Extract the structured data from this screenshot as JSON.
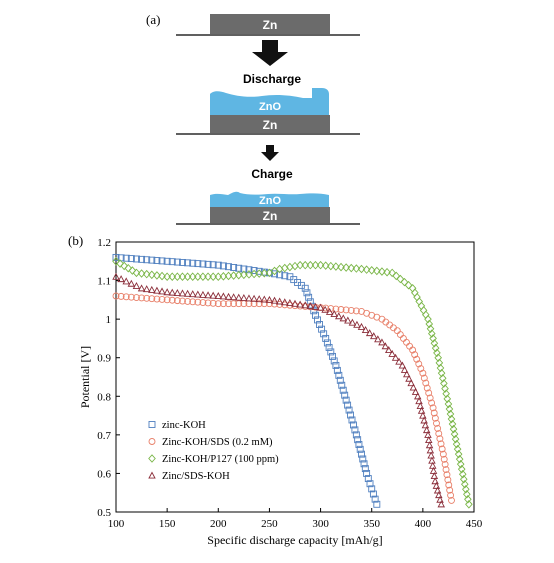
{
  "panels": {
    "a": {
      "label": "(a)"
    },
    "b": {
      "label": "(b)"
    }
  },
  "schematic": {
    "layers": {
      "zn_top": "Zn",
      "zno_middle": "ZnO",
      "zn_middle": "Zn",
      "zno_bottom": "ZnO",
      "zn_bottom": "Zn"
    },
    "steps": {
      "discharge": "Discharge",
      "charge": "Charge"
    },
    "colors": {
      "zn": "#6b6b6b",
      "zno": "#5fb6e3",
      "arrow": "#111111"
    }
  },
  "chart_data": {
    "type": "scatter",
    "xlabel": "Specific discharge capacity [mAh/g]",
    "ylabel": "Potential [V]",
    "xlim": [
      100,
      450
    ],
    "ylim": [
      0.5,
      1.2
    ],
    "xticks": [
      100,
      150,
      200,
      250,
      300,
      350,
      400,
      450
    ],
    "yticks": [
      0.5,
      0.6,
      0.7,
      0.8,
      0.9,
      1,
      1.1,
      1.2
    ],
    "ytick_labels": [
      "0.5",
      "0.6",
      "0.7",
      "0.8",
      "0.9",
      "1",
      "1.1",
      "1.2"
    ],
    "legend_position": "bottom-left",
    "grid": false,
    "series": [
      {
        "name": "zinc-KOH",
        "marker": "square",
        "color": "#4f7fbf",
        "points": [
          [
            100,
            1.16
          ],
          [
            150,
            1.15
          ],
          [
            200,
            1.14
          ],
          [
            250,
            1.12
          ],
          [
            270,
            1.11
          ],
          [
            285,
            1.08
          ],
          [
            295,
            1.01
          ],
          [
            305,
            0.95
          ],
          [
            315,
            0.88
          ],
          [
            325,
            0.79
          ],
          [
            335,
            0.7
          ],
          [
            345,
            0.6
          ],
          [
            355,
            0.52
          ]
        ]
      },
      {
        "name": "Zinc-KOH/SDS (0.2 mM)",
        "marker": "circle",
        "color": "#e8806a",
        "points": [
          [
            100,
            1.06
          ],
          [
            150,
            1.05
          ],
          [
            200,
            1.04
          ],
          [
            250,
            1.04
          ],
          [
            300,
            1.03
          ],
          [
            340,
            1.02
          ],
          [
            360,
            1.0
          ],
          [
            375,
            0.97
          ],
          [
            390,
            0.92
          ],
          [
            400,
            0.86
          ],
          [
            410,
            0.77
          ],
          [
            420,
            0.65
          ],
          [
            428,
            0.53
          ]
        ]
      },
      {
        "name": "Zinc-KOH/P127 (100 ppm)",
        "marker": "diamond",
        "color": "#7ab648",
        "points": [
          [
            100,
            1.15
          ],
          [
            120,
            1.12
          ],
          [
            150,
            1.11
          ],
          [
            200,
            1.11
          ],
          [
            250,
            1.12
          ],
          [
            260,
            1.13
          ],
          [
            280,
            1.14
          ],
          [
            300,
            1.14
          ],
          [
            340,
            1.13
          ],
          [
            370,
            1.12
          ],
          [
            390,
            1.08
          ],
          [
            405,
            1.0
          ],
          [
            415,
            0.9
          ],
          [
            425,
            0.78
          ],
          [
            435,
            0.65
          ],
          [
            445,
            0.52
          ]
        ]
      },
      {
        "name": "Zinc/SDS-KOH",
        "marker": "triangle",
        "color": "#8b2e3a",
        "points": [
          [
            100,
            1.11
          ],
          [
            125,
            1.08
          ],
          [
            150,
            1.07
          ],
          [
            200,
            1.06
          ],
          [
            250,
            1.05
          ],
          [
            300,
            1.03
          ],
          [
            340,
            0.98
          ],
          [
            360,
            0.94
          ],
          [
            380,
            0.88
          ],
          [
            395,
            0.8
          ],
          [
            405,
            0.7
          ],
          [
            412,
            0.58
          ],
          [
            418,
            0.52
          ]
        ]
      }
    ]
  }
}
